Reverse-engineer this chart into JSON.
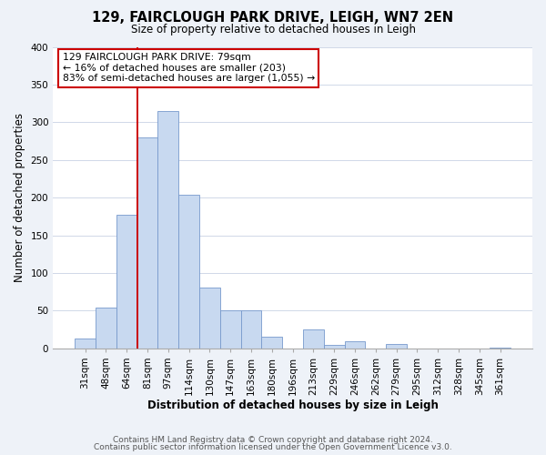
{
  "title": "129, FAIRCLOUGH PARK DRIVE, LEIGH, WN7 2EN",
  "subtitle": "Size of property relative to detached houses in Leigh",
  "xlabel": "Distribution of detached houses by size in Leigh",
  "ylabel": "Number of detached properties",
  "bar_color": "#c8d9f0",
  "bar_edge_color": "#7799cc",
  "categories": [
    "31sqm",
    "48sqm",
    "64sqm",
    "81sqm",
    "97sqm",
    "114sqm",
    "130sqm",
    "147sqm",
    "163sqm",
    "180sqm",
    "196sqm",
    "213sqm",
    "229sqm",
    "246sqm",
    "262sqm",
    "279sqm",
    "295sqm",
    "312sqm",
    "328sqm",
    "345sqm",
    "361sqm"
  ],
  "values": [
    13,
    54,
    177,
    280,
    315,
    204,
    81,
    51,
    51,
    16,
    0,
    25,
    5,
    10,
    0,
    6,
    0,
    0,
    0,
    0,
    1
  ],
  "ylim": [
    0,
    400
  ],
  "yticks": [
    0,
    50,
    100,
    150,
    200,
    250,
    300,
    350,
    400
  ],
  "vline_color": "#cc0000",
  "vline_x_index": 3,
  "annotation_line1": "129 FAIRCLOUGH PARK DRIVE: 79sqm",
  "annotation_line2": "← 16% of detached houses are smaller (203)",
  "annotation_line3": "83% of semi-detached houses are larger (1,055) →",
  "annotation_box_color": "#ffffff",
  "annotation_box_edge": "#cc0000",
  "footer1": "Contains HM Land Registry data © Crown copyright and database right 2024.",
  "footer2": "Contains public sector information licensed under the Open Government Licence v3.0.",
  "background_color": "#eef2f8",
  "plot_background": "#ffffff",
  "grid_color": "#d0d8e8",
  "title_fontsize": 10.5,
  "subtitle_fontsize": 8.5,
  "axis_label_fontsize": 8.5,
  "tick_fontsize": 7.5,
  "annotation_fontsize": 7.8,
  "footer_fontsize": 6.5
}
